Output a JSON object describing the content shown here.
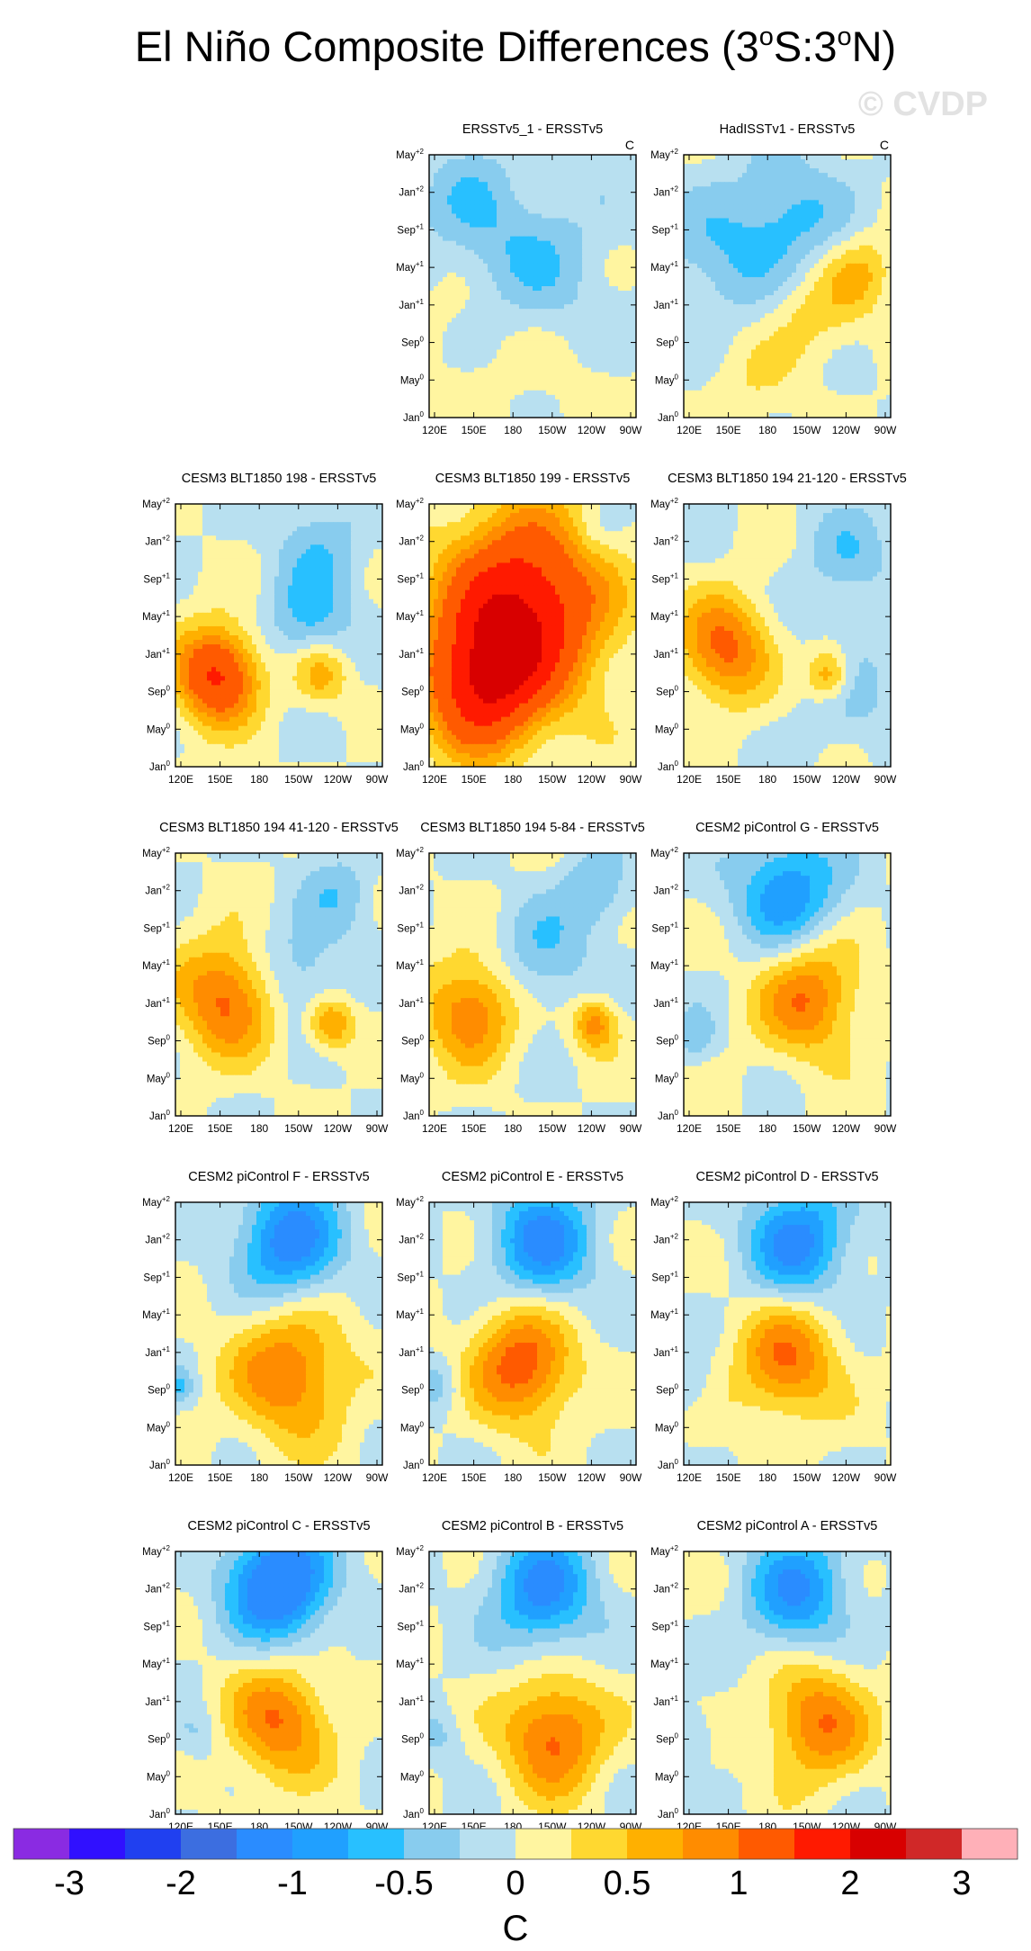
{
  "title": {
    "main": "El Niño Composite Differences (3",
    "sup1": "o",
    "mid": "S:3",
    "sup2": "o",
    "end": "N)"
  },
  "watermark": "© CVDP",
  "y_ticks": [
    {
      "base": "Jan",
      "sup": "0"
    },
    {
      "base": "May",
      "sup": "0"
    },
    {
      "base": "Sep",
      "sup": "0"
    },
    {
      "base": "Jan",
      "sup": "+1"
    },
    {
      "base": "May",
      "sup": "+1"
    },
    {
      "base": "Sep",
      "sup": "+1"
    },
    {
      "base": "Jan",
      "sup": "+2"
    },
    {
      "base": "May",
      "sup": "+2"
    }
  ],
  "x_ticks": [
    "120E",
    "150E",
    "180",
    "150W",
    "120W",
    "90W"
  ],
  "colorbar": {
    "colors": [
      "#8a2be2",
      "#3010ff",
      "#2040f0",
      "#3c6ee0",
      "#2a8cff",
      "#20a0ff",
      "#28c0ff",
      "#88ccee",
      "#b8e0f0",
      "#fff5a0",
      "#ffd830",
      "#ffb000",
      "#ff8c00",
      "#ff5a00",
      "#ff1a00",
      "#d80000",
      "#d02828",
      "#ffb0b8"
    ],
    "labels": [
      "-3",
      "-2",
      "-1",
      "-0.5",
      "0",
      "0.5",
      "1",
      "2",
      "3"
    ],
    "unit": "C"
  },
  "chart_data": {
    "type": "heatmap",
    "variable": "El Niño composite SST differences (3°S:3°N), Hovmöller: longitude vs. time",
    "units": "C",
    "x_axis": [
      "120E",
      "150E",
      "180",
      "150W",
      "120W",
      "90W"
    ],
    "y_axis": [
      "Jan0",
      "May0",
      "Sep0",
      "Jan+1",
      "May+1",
      "Sep+1",
      "Jan+2",
      "May+2"
    ],
    "contour_levels": [
      -3,
      -2.5,
      -2,
      -1.5,
      -1,
      -0.75,
      -0.5,
      -0.25,
      0,
      0.25,
      0.5,
      0.75,
      1,
      1.5,
      2,
      2.5,
      3
    ],
    "panels": [
      {
        "title": "ERSSTv5_1 - ERSSTv5",
        "unit_label": "C",
        "extremes": {
          "min": -0.5,
          "max": 0.25
        }
      },
      {
        "title": "HadISSTv1 - ERSSTv5",
        "unit_label": "C",
        "extremes": {
          "min": -0.75,
          "max": 0.75
        }
      },
      {
        "title": "CESM3 BLT1850 198 - ERSSTv5",
        "extremes": {
          "min": -0.75,
          "max": 1.5
        }
      },
      {
        "title": "CESM3 BLT1850 199 - ERSSTv5",
        "extremes": {
          "min": -0.5,
          "max": 2.0
        }
      },
      {
        "title": "CESM3 BLT1850 194 21-120 - ERSSTv5",
        "extremes": {
          "min": -0.5,
          "max": 1.0
        }
      },
      {
        "title": "CESM3 BLT1850 194 41-120 - ERSSTv5",
        "extremes": {
          "min": -0.5,
          "max": 1.0
        }
      },
      {
        "title": "CESM3 BLT1850 194 5-84 - ERSSTv5",
        "extremes": {
          "min": -0.5,
          "max": 1.0
        }
      },
      {
        "title": "CESM2 piControl G - ERSSTv5",
        "extremes": {
          "min": -1.0,
          "max": 1.0
        }
      },
      {
        "title": "CESM2 piControl F - ERSSTv5",
        "extremes": {
          "min": -1.0,
          "max": 1.0
        }
      },
      {
        "title": "CESM2 piControl E - ERSSTv5",
        "extremes": {
          "min": -1.0,
          "max": 1.0
        }
      },
      {
        "title": "CESM2 piControl D - ERSSTv5",
        "extremes": {
          "min": -1.0,
          "max": 1.0
        }
      },
      {
        "title": "CESM2 piControl C - ERSSTv5",
        "extremes": {
          "min": -1.5,
          "max": 1.0
        }
      },
      {
        "title": "CESM2 piControl B - ERSSTv5",
        "extremes": {
          "min": -1.0,
          "max": 1.0
        }
      },
      {
        "title": "CESM2 piControl A - ERSSTv5",
        "extremes": {
          "min": -1.0,
          "max": 1.0
        }
      }
    ]
  }
}
